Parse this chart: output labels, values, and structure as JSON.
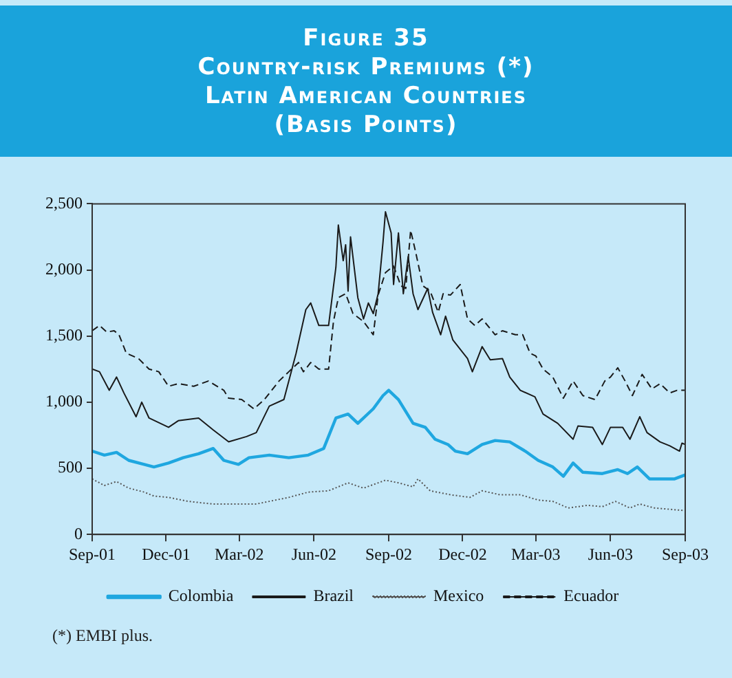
{
  "chart_data": {
    "type": "line",
    "title": "Figure 35\nCountry-risk Premiums (*)\nLatin American Countries\n(Basis Points)",
    "annotations": [
      "(*) EMBI plus."
    ],
    "xlim": [
      "2001-09",
      "2003-09"
    ],
    "xticks": [
      {
        "value": "2001-09",
        "label": "Sep-01"
      },
      {
        "value": "2001-12",
        "label": "Dec-01"
      },
      {
        "value": "2002-03",
        "label": "Mar-02"
      },
      {
        "value": "2002-06",
        "label": "Jun-02"
      },
      {
        "value": "2002-09",
        "label": "Sep-02"
      },
      {
        "value": "2002-12",
        "label": "Dec-02"
      },
      {
        "value": "2003-03",
        "label": "Mar-03"
      },
      {
        "value": "2003-06",
        "label": "Jun-03"
      },
      {
        "value": "2003-09",
        "label": "Sep-03"
      }
    ],
    "ylim": [
      0,
      2500
    ],
    "yticks": [
      0,
      500,
      {
        "value": 1000,
        "label": "1,000"
      },
      {
        "value": 1500,
        "label": "1,500"
      },
      {
        "value": 2000,
        "label": "2,000"
      },
      {
        "value": 2500,
        "label": "2,500"
      }
    ],
    "grid": false,
    "legend": "bottom",
    "marker": "none",
    "series": [
      {
        "name": "Colombia",
        "color": "#1fa7e0",
        "line_style": "solid",
        "x": [
          "2001-09-01",
          "2001-09-16",
          "2001-10-01",
          "2001-10-16",
          "2001-11-04",
          "2001-11-16",
          "2001-12-04",
          "2001-12-22",
          "2002-01-10",
          "2002-01-28",
          "2002-02-10",
          "2002-02-28",
          "2002-03-13",
          "2002-04-07",
          "2002-05-01",
          "2002-05-25",
          "2002-06-13",
          "2002-06-28",
          "2002-07-13",
          "2002-07-25",
          "2002-08-13",
          "2002-08-25",
          "2002-09-01",
          "2002-09-13",
          "2002-10-01",
          "2002-10-16",
          "2002-10-28",
          "2002-11-13",
          "2002-11-22",
          "2002-12-07",
          "2002-12-25",
          "2003-01-10",
          "2003-01-28",
          "2003-02-16",
          "2003-03-04",
          "2003-03-22",
          "2003-04-04",
          "2003-04-16",
          "2003-04-28",
          "2003-05-22",
          "2003-06-10",
          "2003-06-22",
          "2003-07-04",
          "2003-07-19",
          "2003-08-01",
          "2003-08-19",
          "2003-09-01"
        ],
        "values": [
          630,
          600,
          620,
          560,
          530,
          510,
          540,
          580,
          610,
          650,
          560,
          530,
          580,
          600,
          580,
          600,
          650,
          880,
          910,
          840,
          950,
          1050,
          1090,
          1020,
          840,
          810,
          720,
          680,
          630,
          610,
          680,
          710,
          700,
          630,
          560,
          510,
          440,
          540,
          470,
          460,
          490,
          460,
          510,
          420,
          420,
          420,
          450
        ]
      },
      {
        "name": "Brazil",
        "color": "#1a1a1a",
        "line_style": "solid",
        "x": [
          "2001-09-01",
          "2001-09-10",
          "2001-09-22",
          "2001-10-01",
          "2001-10-10",
          "2001-10-25",
          "2001-11-01",
          "2001-11-10",
          "2001-12-04",
          "2001-12-16",
          "2002-01-10",
          "2002-01-28",
          "2002-02-16",
          "2002-03-10",
          "2002-03-22",
          "2002-04-07",
          "2002-04-25",
          "2002-05-04",
          "2002-05-10",
          "2002-05-22",
          "2002-05-28",
          "2002-06-07",
          "2002-06-19",
          "2002-06-28",
          "2002-07-01",
          "2002-07-07",
          "2002-07-10",
          "2002-07-13",
          "2002-07-16",
          "2002-07-25",
          "2002-08-01",
          "2002-08-07",
          "2002-08-13",
          "2002-08-19",
          "2002-08-25",
          "2002-08-28",
          "2002-09-04",
          "2002-09-07",
          "2002-09-13",
          "2002-09-19",
          "2002-09-25",
          "2002-10-01",
          "2002-10-07",
          "2002-10-19",
          "2002-10-25",
          "2002-11-04",
          "2002-11-10",
          "2002-11-19",
          "2002-11-28",
          "2002-12-07",
          "2002-12-13",
          "2002-12-25",
          "2003-01-04",
          "2003-01-19",
          "2003-01-28",
          "2003-02-10",
          "2003-02-28",
          "2003-03-10",
          "2003-03-28",
          "2003-04-16",
          "2003-04-22",
          "2003-05-10",
          "2003-05-22",
          "2003-06-01",
          "2003-06-16",
          "2003-06-25",
          "2003-07-07",
          "2003-07-16",
          "2003-08-01",
          "2003-08-13",
          "2003-08-25",
          "2003-08-28",
          "2003-09-01"
        ],
        "values": [
          1250,
          1230,
          1090,
          1190,
          1070,
          890,
          1000,
          880,
          810,
          860,
          880,
          790,
          700,
          740,
          770,
          970,
          1020,
          1230,
          1370,
          1700,
          1750,
          1580,
          1580,
          2020,
          2340,
          2070,
          2190,
          1840,
          2250,
          1790,
          1630,
          1750,
          1670,
          1820,
          2210,
          2440,
          2280,
          1890,
          2280,
          1820,
          2100,
          1820,
          1700,
          1860,
          1680,
          1510,
          1650,
          1470,
          1400,
          1330,
          1230,
          1420,
          1320,
          1330,
          1190,
          1090,
          1040,
          910,
          840,
          720,
          820,
          810,
          680,
          810,
          810,
          720,
          890,
          770,
          700,
          670,
          630,
          690,
          680
        ]
      },
      {
        "name": "Mexico",
        "color": "#555555",
        "line_style": "dotted",
        "x": [
          "2001-09-01",
          "2001-09-16",
          "2001-10-01",
          "2001-10-16",
          "2001-11-04",
          "2001-11-16",
          "2001-12-04",
          "2001-12-28",
          "2002-01-28",
          "2002-02-28",
          "2002-03-22",
          "2002-04-07",
          "2002-05-01",
          "2002-05-25",
          "2002-06-19",
          "2002-07-13",
          "2002-08-01",
          "2002-08-28",
          "2002-09-13",
          "2002-10-01",
          "2002-10-07",
          "2002-10-22",
          "2002-11-16",
          "2002-12-10",
          "2002-12-25",
          "2003-01-16",
          "2003-02-10",
          "2003-03-04",
          "2003-03-22",
          "2003-04-10",
          "2003-05-04",
          "2003-05-22",
          "2003-06-07",
          "2003-06-25",
          "2003-07-07",
          "2003-07-25",
          "2003-08-13",
          "2003-09-01"
        ],
        "values": [
          420,
          370,
          400,
          350,
          320,
          290,
          280,
          250,
          230,
          230,
          230,
          250,
          280,
          320,
          330,
          390,
          350,
          410,
          390,
          360,
          420,
          330,
          300,
          280,
          330,
          300,
          300,
          260,
          250,
          200,
          220,
          210,
          250,
          200,
          230,
          200,
          190,
          180
        ]
      },
      {
        "name": "Ecuador",
        "color": "#1a1a1a",
        "line_style": "dashed",
        "x": [
          "2001-09-01",
          "2001-09-10",
          "2001-09-19",
          "2001-09-28",
          "2001-10-04",
          "2001-10-13",
          "2001-10-28",
          "2001-11-10",
          "2001-11-22",
          "2001-12-04",
          "2001-12-16",
          "2002-01-04",
          "2002-01-22",
          "2002-02-10",
          "2002-02-16",
          "2002-03-04",
          "2002-03-19",
          "2002-04-01",
          "2002-04-19",
          "2002-05-01",
          "2002-05-13",
          "2002-05-19",
          "2002-05-28",
          "2002-06-07",
          "2002-06-19",
          "2002-06-25",
          "2002-07-01",
          "2002-07-10",
          "2002-07-19",
          "2002-08-01",
          "2002-08-13",
          "2002-08-19",
          "2002-08-28",
          "2002-09-07",
          "2002-09-16",
          "2002-09-22",
          "2002-09-28",
          "2002-10-04",
          "2002-10-13",
          "2002-10-22",
          "2002-11-01",
          "2002-11-07",
          "2002-11-16",
          "2002-11-28",
          "2002-12-07",
          "2002-12-16",
          "2002-12-25",
          "2003-01-10",
          "2003-01-19",
          "2003-02-04",
          "2003-02-13",
          "2003-02-22",
          "2003-03-01",
          "2003-03-10",
          "2003-03-22",
          "2003-04-04",
          "2003-04-16",
          "2003-04-28",
          "2003-05-13",
          "2003-05-25",
          "2003-06-01",
          "2003-06-10",
          "2003-06-19",
          "2003-06-28",
          "2003-07-10",
          "2003-07-22",
          "2003-08-01",
          "2003-08-13",
          "2003-08-22",
          "2003-09-01"
        ],
        "values": [
          1540,
          1580,
          1530,
          1540,
          1510,
          1370,
          1330,
          1250,
          1230,
          1120,
          1140,
          1120,
          1160,
          1090,
          1030,
          1020,
          950,
          1020,
          1160,
          1230,
          1300,
          1230,
          1300,
          1250,
          1250,
          1610,
          1790,
          1820,
          1670,
          1610,
          1510,
          1810,
          1980,
          2030,
          1880,
          1860,
          2300,
          2140,
          1880,
          1840,
          1680,
          1820,
          1810,
          1890,
          1630,
          1580,
          1630,
          1510,
          1540,
          1510,
          1510,
          1370,
          1350,
          1250,
          1190,
          1030,
          1160,
          1050,
          1020,
          1160,
          1190,
          1260,
          1160,
          1050,
          1210,
          1100,
          1140,
          1070,
          1090,
          1090
        ]
      }
    ]
  }
}
